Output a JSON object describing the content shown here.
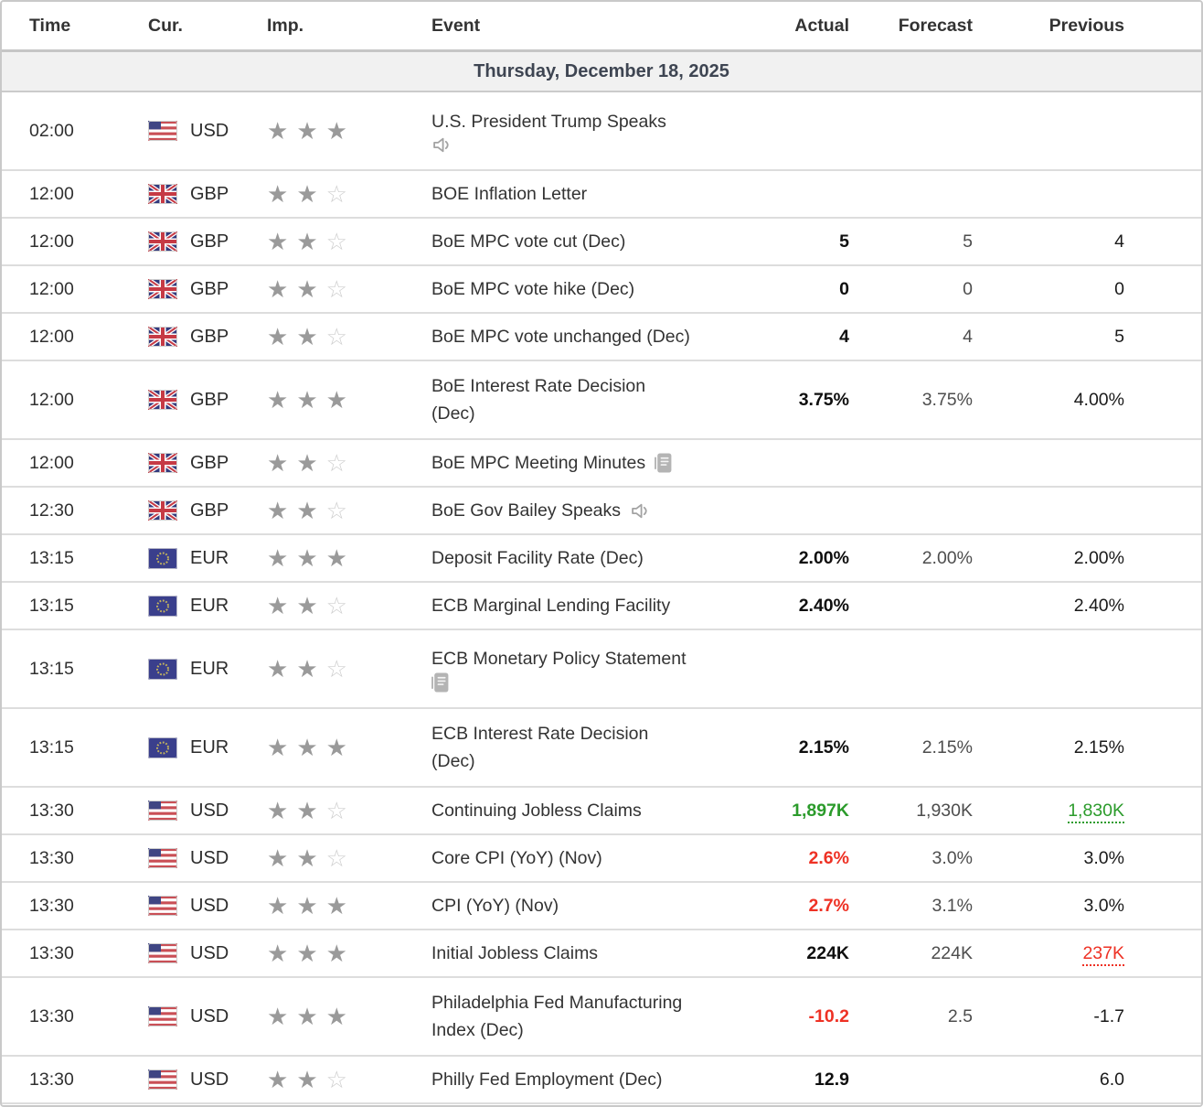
{
  "table": {
    "columns": [
      "Time",
      "Cur.",
      "Imp.",
      "Event",
      "Actual",
      "Forecast",
      "Previous"
    ],
    "date_header": "Thursday, December 18, 2025",
    "colors": {
      "green": "#2b9b2b",
      "red": "#ee3124",
      "actual_black": "#0f0f0f",
      "forecast_gray": "#4d4d4d",
      "previous_black": "#1a1a1a",
      "star_filled": "#9a9a9a",
      "star_empty": "#cfcfcf"
    },
    "icons": {
      "speech": "speaker-icon",
      "report": "report-icon"
    },
    "rows": [
      {
        "time": "02:00",
        "currency": "USD",
        "flag": "us",
        "importance": 3,
        "event_lines": [
          "U.S. President Trump Speaks"
        ],
        "event_icon": "speech",
        "icon_inline": false,
        "tall": true,
        "actual": "",
        "actual_style": "",
        "forecast": "",
        "previous": "",
        "previous_style": ""
      },
      {
        "time": "12:00",
        "currency": "GBP",
        "flag": "gb",
        "importance": 2,
        "event_lines": [
          "BOE Inflation Letter"
        ],
        "event_icon": null,
        "icon_inline": false,
        "tall": false,
        "actual": "",
        "actual_style": "",
        "forecast": "",
        "previous": "",
        "previous_style": ""
      },
      {
        "time": "12:00",
        "currency": "GBP",
        "flag": "gb",
        "importance": 2,
        "event_lines": [
          "BoE MPC vote cut (Dec)"
        ],
        "event_icon": null,
        "icon_inline": false,
        "tall": false,
        "actual": "5",
        "actual_style": "bold",
        "forecast": "5",
        "previous": "4",
        "previous_style": ""
      },
      {
        "time": "12:00",
        "currency": "GBP",
        "flag": "gb",
        "importance": 2,
        "event_lines": [
          "BoE MPC vote hike (Dec)"
        ],
        "event_icon": null,
        "icon_inline": false,
        "tall": false,
        "actual": "0",
        "actual_style": "bold",
        "forecast": "0",
        "previous": "0",
        "previous_style": ""
      },
      {
        "time": "12:00",
        "currency": "GBP",
        "flag": "gb",
        "importance": 2,
        "event_lines": [
          "BoE MPC vote unchanged (Dec)"
        ],
        "event_icon": null,
        "icon_inline": false,
        "tall": false,
        "actual": "4",
        "actual_style": "bold",
        "forecast": "4",
        "previous": "5",
        "previous_style": ""
      },
      {
        "time": "12:00",
        "currency": "GBP",
        "flag": "gb",
        "importance": 3,
        "event_lines": [
          "BoE Interest Rate Decision",
          "(Dec)"
        ],
        "event_icon": null,
        "icon_inline": false,
        "tall": true,
        "actual": "3.75%",
        "actual_style": "bold",
        "forecast": "3.75%",
        "previous": "4.00%",
        "previous_style": ""
      },
      {
        "time": "12:00",
        "currency": "GBP",
        "flag": "gb",
        "importance": 2,
        "event_lines": [
          "BoE MPC Meeting Minutes"
        ],
        "event_icon": "report",
        "icon_inline": true,
        "tall": false,
        "actual": "",
        "actual_style": "",
        "forecast": "",
        "previous": "",
        "previous_style": ""
      },
      {
        "time": "12:30",
        "currency": "GBP",
        "flag": "gb",
        "importance": 2,
        "event_lines": [
          "BoE Gov Bailey Speaks"
        ],
        "event_icon": "speech",
        "icon_inline": true,
        "tall": false,
        "actual": "",
        "actual_style": "",
        "forecast": "",
        "previous": "",
        "previous_style": ""
      },
      {
        "time": "13:15",
        "currency": "EUR",
        "flag": "eu",
        "importance": 3,
        "event_lines": [
          "Deposit Facility Rate (Dec)"
        ],
        "event_icon": null,
        "icon_inline": false,
        "tall": false,
        "actual": "2.00%",
        "actual_style": "bold",
        "forecast": "2.00%",
        "previous": "2.00%",
        "previous_style": ""
      },
      {
        "time": "13:15",
        "currency": "EUR",
        "flag": "eu",
        "importance": 2,
        "event_lines": [
          "ECB Marginal Lending Facility"
        ],
        "event_icon": null,
        "icon_inline": false,
        "tall": false,
        "actual": "2.40%",
        "actual_style": "bold",
        "forecast": "",
        "previous": "2.40%",
        "previous_style": ""
      },
      {
        "time": "13:15",
        "currency": "EUR",
        "flag": "eu",
        "importance": 2,
        "event_lines": [
          "ECB Monetary Policy Statement"
        ],
        "event_icon": "report",
        "icon_inline": false,
        "tall": true,
        "actual": "",
        "actual_style": "",
        "forecast": "",
        "previous": "",
        "previous_style": ""
      },
      {
        "time": "13:15",
        "currency": "EUR",
        "flag": "eu",
        "importance": 3,
        "event_lines": [
          "ECB Interest Rate Decision",
          "(Dec)"
        ],
        "event_icon": null,
        "icon_inline": false,
        "tall": true,
        "actual": "2.15%",
        "actual_style": "bold",
        "forecast": "2.15%",
        "previous": "2.15%",
        "previous_style": ""
      },
      {
        "time": "13:30",
        "currency": "USD",
        "flag": "us",
        "importance": 2,
        "event_lines": [
          "Continuing Jobless Claims"
        ],
        "event_icon": null,
        "icon_inline": false,
        "tall": false,
        "actual": "1,897K",
        "actual_style": "bold-green",
        "forecast": "1,930K",
        "previous": "1,830K",
        "previous_style": "green-revised"
      },
      {
        "time": "13:30",
        "currency": "USD",
        "flag": "us",
        "importance": 2,
        "event_lines": [
          "Core CPI (YoY) (Nov)"
        ],
        "event_icon": null,
        "icon_inline": false,
        "tall": false,
        "actual": "2.6%",
        "actual_style": "bold-red",
        "forecast": "3.0%",
        "previous": "3.0%",
        "previous_style": ""
      },
      {
        "time": "13:30",
        "currency": "USD",
        "flag": "us",
        "importance": 3,
        "event_lines": [
          "CPI (YoY) (Nov)"
        ],
        "event_icon": null,
        "icon_inline": false,
        "tall": false,
        "actual": "2.7%",
        "actual_style": "bold-red",
        "forecast": "3.1%",
        "previous": "3.0%",
        "previous_style": ""
      },
      {
        "time": "13:30",
        "currency": "USD",
        "flag": "us",
        "importance": 3,
        "event_lines": [
          "Initial Jobless Claims"
        ],
        "event_icon": null,
        "icon_inline": false,
        "tall": false,
        "actual": "224K",
        "actual_style": "bold",
        "forecast": "224K",
        "previous": "237K",
        "previous_style": "red-revised"
      },
      {
        "time": "13:30",
        "currency": "USD",
        "flag": "us",
        "importance": 3,
        "event_lines": [
          "Philadelphia Fed Manufacturing",
          "Index (Dec)"
        ],
        "event_icon": null,
        "icon_inline": false,
        "tall": true,
        "actual": "-10.2",
        "actual_style": "bold-red",
        "forecast": "2.5",
        "previous": "-1.7",
        "previous_style": ""
      },
      {
        "time": "13:30",
        "currency": "USD",
        "flag": "us",
        "importance": 2,
        "event_lines": [
          "Philly Fed Employment (Dec)"
        ],
        "event_icon": null,
        "icon_inline": false,
        "tall": false,
        "actual": "12.9",
        "actual_style": "bold",
        "forecast": "",
        "previous": "6.0",
        "previous_style": ""
      }
    ]
  }
}
